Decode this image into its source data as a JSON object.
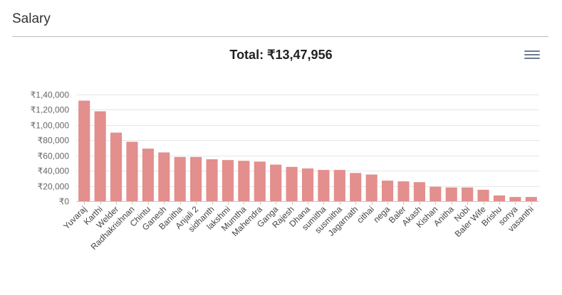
{
  "panel": {
    "title": "Salary"
  },
  "toolbar": {
    "menu_icon": "hamburger-menu-icon"
  },
  "chart_data": {
    "type": "bar",
    "title": "Total: ₹13,47,956",
    "xlabel": "",
    "ylabel": "",
    "ylim": [
      0,
      140000
    ],
    "yticks": [
      0,
      20000,
      40000,
      60000,
      80000,
      100000,
      120000,
      140000
    ],
    "ytick_labels": [
      "₹0",
      "₹20,000",
      "₹40,000",
      "₹60,000",
      "₹80,000",
      "₹1,00,000",
      "₹1,20,000",
      "₹1,40,000"
    ],
    "grid": true,
    "legend": "none",
    "bar_color": "#e28f8d",
    "categories": [
      "Yuvaraj",
      "Karthi",
      "Welder",
      "Radhakrishnan",
      "Chintu",
      "Ganesh",
      "Banitha",
      "Anjali 2",
      "sidhanth",
      "lakshmi",
      "Mumtha",
      "Mahendra",
      "Ganga",
      "Rajesh",
      "Dhana",
      "sumitha",
      "susmitha",
      "Jagarnath",
      "cithai",
      "nega",
      "Baler",
      "Akash",
      "Kishan",
      "Anitha",
      "Nobi",
      "Baler Wife",
      "Brishu",
      "sonya",
      "vasanthi"
    ],
    "values": [
      132000,
      118000,
      90000,
      78000,
      69000,
      64000,
      58000,
      58000,
      55000,
      54000,
      53000,
      52000,
      48000,
      45000,
      43000,
      41000,
      41000,
      37000,
      35000,
      27000,
      26000,
      25000,
      19000,
      18000,
      18000,
      15000,
      7500,
      5500,
      5500
    ]
  }
}
